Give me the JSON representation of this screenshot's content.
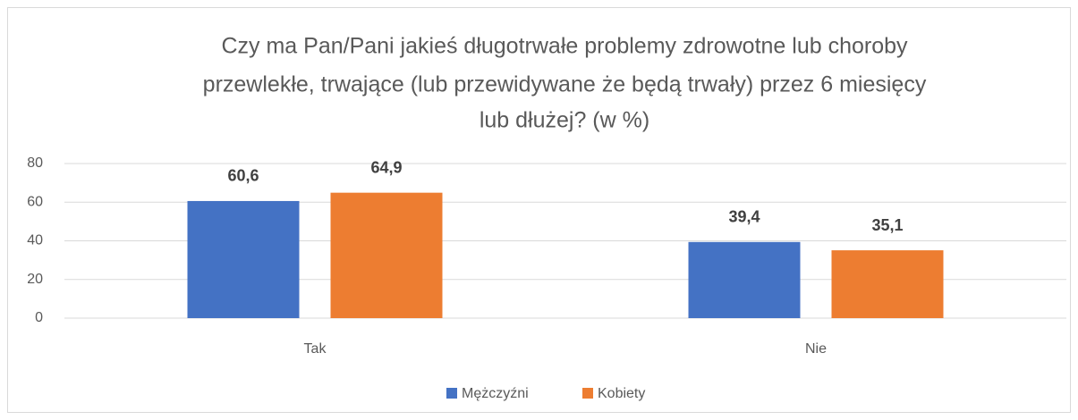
{
  "chart_data": {
    "type": "bar",
    "title": [
      "Czy ma Pan/Pani jakieś długotrwałe problemy zdrowotne lub choroby",
      "przewlekłe, trwające (lub przewidywane że będą trwały) przez 6 miesięcy",
      "lub dłużej? (w %)"
    ],
    "categories": [
      "Tak",
      "Nie"
    ],
    "series": [
      {
        "name": "Mężczyźni",
        "color": "#4472c4",
        "values": [
          60.6,
          39.4
        ],
        "value_labels": [
          "60,6",
          "39,4"
        ]
      },
      {
        "name": "Kobiety",
        "color": "#ed7d31",
        "values": [
          64.9,
          35.1
        ],
        "value_labels": [
          "64,9",
          "35,1"
        ]
      }
    ],
    "ylim": [
      0,
      80
    ],
    "yticks": [
      0,
      20,
      40,
      60,
      80
    ],
    "grid": true,
    "legend": "bottom"
  }
}
